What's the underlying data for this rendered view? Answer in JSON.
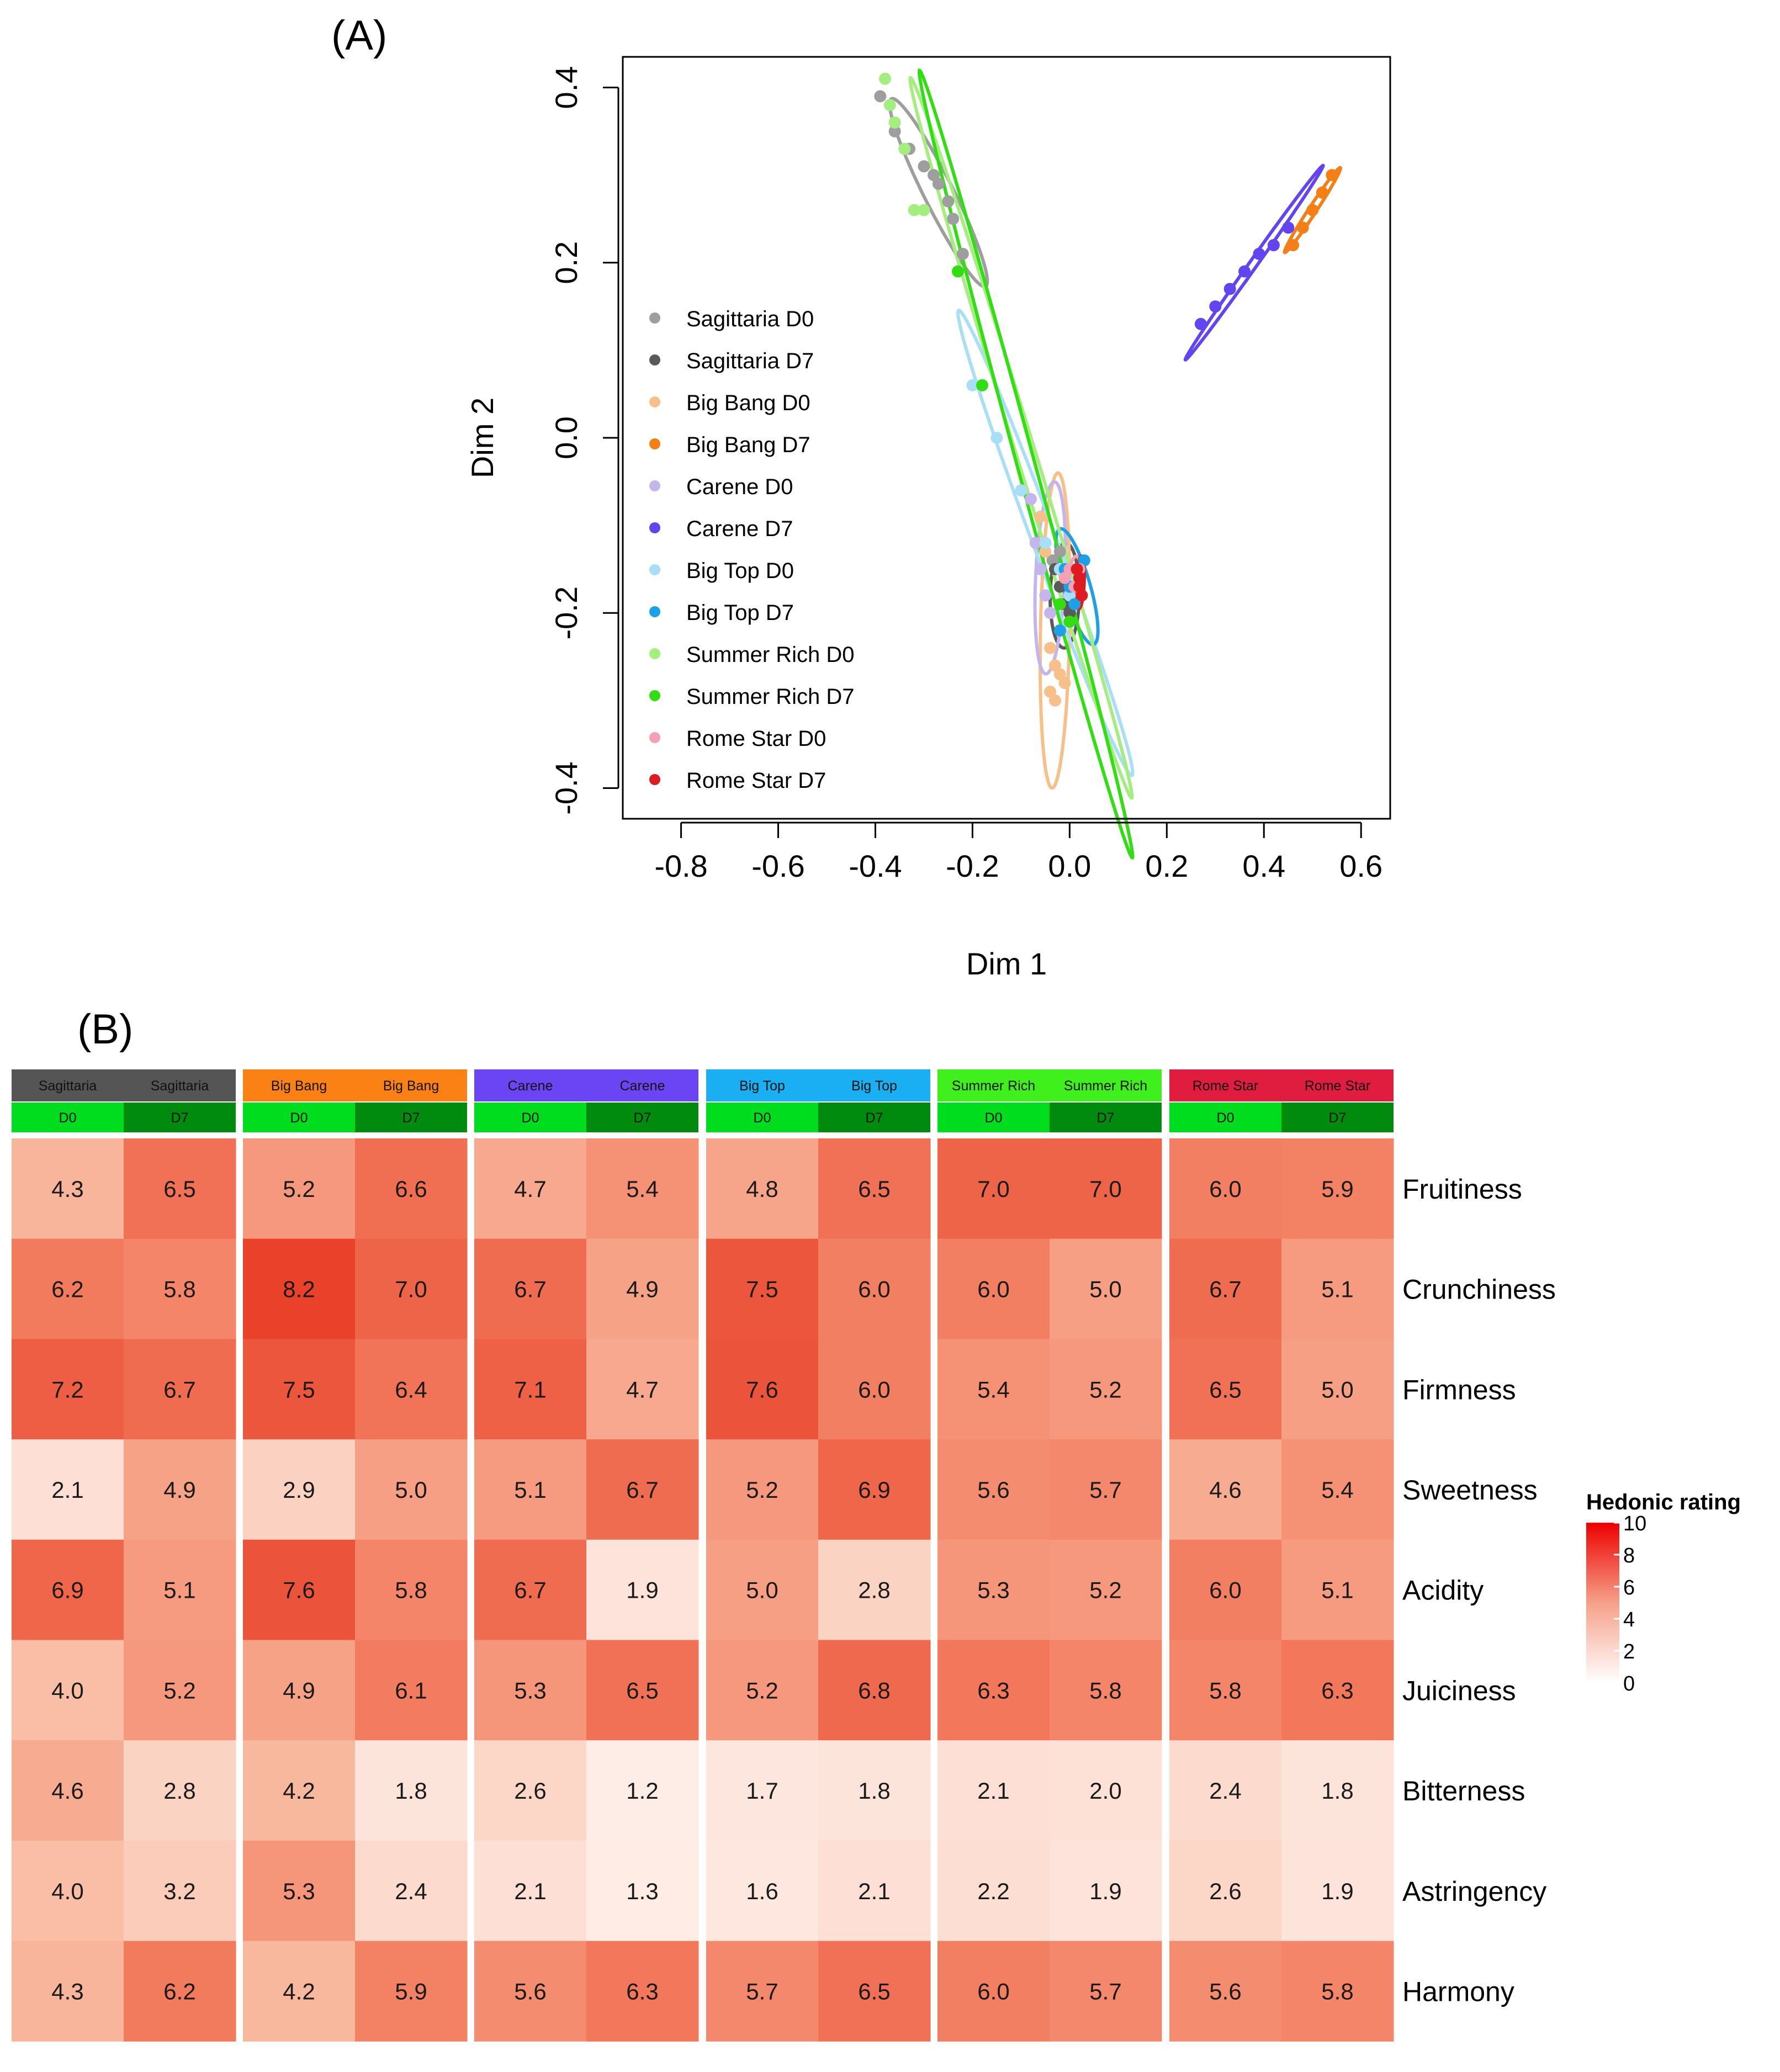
{
  "panel_a": {
    "label": "(A)",
    "chart_data": {
      "type": "scatter",
      "xlabel": "Dim 1",
      "ylabel": "Dim 2",
      "xlim": [
        -0.92,
        0.66
      ],
      "ylim": [
        -0.435,
        0.435
      ],
      "xticks": [
        -0.8,
        -0.6,
        -0.4,
        -0.2,
        0.0,
        0.2,
        0.4,
        0.6
      ],
      "yticks": [
        -0.4,
        -0.2,
        0.0,
        0.2,
        0.4
      ],
      "xtick_labels": [
        "-0.8",
        "-0.6",
        "-0.4",
        "-0.2",
        "0.0",
        "0.2",
        "0.4",
        "0.6"
      ],
      "ytick_labels": [
        "-0.4",
        "-0.2",
        "0.0",
        "0.2",
        "0.4"
      ],
      "legend_position": "left",
      "series": [
        {
          "name": "Sagittaria D0",
          "color": "#9e9e9e",
          "points": [
            [
              -0.39,
              0.39
            ],
            [
              -0.36,
              0.35
            ],
            [
              -0.33,
              0.33
            ],
            [
              -0.3,
              0.31
            ],
            [
              -0.28,
              0.3
            ],
            [
              -0.27,
              0.29
            ],
            [
              -0.25,
              0.27
            ],
            [
              -0.24,
              0.25
            ],
            [
              -0.22,
              0.21
            ],
            [
              -0.035,
              -0.14
            ],
            [
              -0.02,
              -0.13
            ]
          ],
          "ellipse": {
            "cx": -0.27,
            "cy": 0.28,
            "a": 0.145,
            "b": 0.025,
            "angle": -47
          }
        },
        {
          "name": "Sagittaria D7",
          "color": "#5a5a5a",
          "points": [
            [
              -0.03,
              -0.15
            ],
            [
              -0.02,
              -0.17
            ],
            [
              -0.01,
              -0.19
            ],
            [
              0.0,
              -0.2
            ],
            [
              -0.02,
              -0.22
            ]
          ],
          "ellipse": {
            "cx": -0.01,
            "cy": -0.18,
            "a": 0.06,
            "b": 0.03,
            "angle": 88
          }
        },
        {
          "name": "Big Bang D0",
          "color": "#f7c08a",
          "points": [
            [
              -0.06,
              -0.09
            ],
            [
              -0.05,
              -0.13
            ],
            [
              -0.04,
              -0.24
            ],
            [
              -0.03,
              -0.26
            ],
            [
              -0.02,
              -0.27
            ],
            [
              -0.04,
              -0.29
            ],
            [
              -0.03,
              -0.3
            ],
            [
              -0.01,
              -0.28
            ]
          ],
          "ellipse": {
            "cx": -0.03,
            "cy": -0.22,
            "a": 0.18,
            "b": 0.03,
            "angle": 88
          }
        },
        {
          "name": "Big Bang D7",
          "color": "#f57f17",
          "points": [
            [
              0.46,
              0.22
            ],
            [
              0.48,
              0.24
            ],
            [
              0.5,
              0.26
            ],
            [
              0.52,
              0.28
            ],
            [
              0.54,
              0.3
            ]
          ],
          "ellipse": {
            "cx": 0.5,
            "cy": 0.26,
            "a": 0.075,
            "b": 0.006,
            "angle": 40
          }
        },
        {
          "name": "Carene D0",
          "color": "#c4b5ec",
          "points": [
            [
              -0.08,
              -0.07
            ],
            [
              -0.07,
              -0.12
            ],
            [
              -0.06,
              -0.15
            ],
            [
              -0.05,
              -0.18
            ],
            [
              -0.04,
              -0.2
            ]
          ],
          "ellipse": {
            "cx": -0.04,
            "cy": -0.16,
            "a": 0.11,
            "b": 0.03,
            "angle": 85
          }
        },
        {
          "name": "Carene D7",
          "color": "#6244f0",
          "points": [
            [
              0.27,
              0.13
            ],
            [
              0.3,
              0.15
            ],
            [
              0.33,
              0.17
            ],
            [
              0.36,
              0.19
            ],
            [
              0.39,
              0.21
            ],
            [
              0.42,
              0.22
            ],
            [
              0.45,
              0.24
            ]
          ],
          "ellipse": {
            "cx": 0.38,
            "cy": 0.2,
            "a": 0.18,
            "b": 0.006,
            "angle": 38
          }
        },
        {
          "name": "Big Top D0",
          "color": "#a8dff7",
          "points": [
            [
              -0.2,
              0.06
            ],
            [
              -0.15,
              0.0
            ],
            [
              -0.1,
              -0.06
            ],
            [
              -0.05,
              -0.12
            ],
            [
              -0.02,
              -0.15
            ],
            [
              0.0,
              -0.18
            ]
          ],
          "ellipse": {
            "cx": -0.05,
            "cy": -0.12,
            "a": 0.32,
            "b": 0.022,
            "angle": -56
          }
        },
        {
          "name": "Big Top D7",
          "color": "#1ea0e8",
          "points": [
            [
              -0.01,
              -0.15
            ],
            [
              0.0,
              -0.17
            ],
            [
              0.02,
              -0.16
            ],
            [
              0.03,
              -0.14
            ],
            [
              0.01,
              -0.19
            ],
            [
              -0.02,
              -0.22
            ]
          ],
          "ellipse": {
            "cx": 0.015,
            "cy": -0.17,
            "a": 0.075,
            "b": 0.025,
            "angle": -60
          }
        },
        {
          "name": "Summer Rich D0",
          "color": "#a3ee7e",
          "points": [
            [
              -0.38,
              0.41
            ],
            [
              -0.37,
              0.38
            ],
            [
              -0.36,
              0.36
            ],
            [
              -0.34,
              0.33
            ],
            [
              -0.32,
              0.26
            ],
            [
              -0.3,
              0.26
            ]
          ],
          "ellipse": {
            "cx": -0.1,
            "cy": 0.0,
            "a": 0.47,
            "b": 0.018,
            "angle": -61
          }
        },
        {
          "name": "Summer Rich D7",
          "color": "#33dd14",
          "points": [
            [
              -0.23,
              0.19
            ],
            [
              -0.18,
              0.06
            ],
            [
              -0.02,
              -0.19
            ],
            [
              0.0,
              -0.21
            ]
          ],
          "ellipse": {
            "cx": -0.09,
            "cy": -0.03,
            "a": 0.5,
            "b": 0.017,
            "angle": -64
          }
        },
        {
          "name": "Rome Star D0",
          "color": "#f5a0b5",
          "points": [
            [
              -0.01,
              -0.16
            ],
            [
              0.0,
              -0.15
            ],
            [
              0.01,
              -0.17
            ],
            [
              0.02,
              -0.15
            ]
          ],
          "ellipse": {
            "cx": 0.01,
            "cy": -0.16,
            "a": 0.025,
            "b": 0.012,
            "angle": 80
          }
        },
        {
          "name": "Rome Star D7",
          "color": "#dd1b22",
          "points": [
            [
              0.015,
              -0.15
            ],
            [
              0.02,
              -0.17
            ],
            [
              0.025,
              -0.18
            ],
            [
              0.02,
              -0.16
            ]
          ],
          "ellipse": {
            "cx": 0.022,
            "cy": -0.165,
            "a": 0.03,
            "b": 0.008,
            "angle": 85
          }
        }
      ]
    }
  },
  "panel_b": {
    "label": "(B)",
    "chart_data": {
      "type": "heatmap",
      "legend_title": "Hedonic rating",
      "color_range": [
        0,
        10
      ],
      "colorbar_ticks": [
        "10",
        "8",
        "6",
        "4",
        "2",
        "0"
      ],
      "columns": [
        {
          "variety": "Sagittaria",
          "day": "D0",
          "variety_color": "#555555",
          "day_color": "#00dd1f"
        },
        {
          "variety": "Sagittaria",
          "day": "D7",
          "variety_color": "#555555",
          "day_color": "#008b0e"
        },
        {
          "variety": "Big Bang",
          "day": "D0",
          "variety_color": "#fb8115",
          "day_color": "#00dd1f"
        },
        {
          "variety": "Big Bang",
          "day": "D7",
          "variety_color": "#fb8115",
          "day_color": "#008b0e"
        },
        {
          "variety": "Carene",
          "day": "D0",
          "variety_color": "#6b45f4",
          "day_color": "#00dd1f"
        },
        {
          "variety": "Carene",
          "day": "D7",
          "variety_color": "#6b45f4",
          "day_color": "#008b0e"
        },
        {
          "variety": "Big Top",
          "day": "D0",
          "variety_color": "#19aff2",
          "day_color": "#00dd1f"
        },
        {
          "variety": "Big Top",
          "day": "D7",
          "variety_color": "#19aff2",
          "day_color": "#008b0e"
        },
        {
          "variety": "Summer Rich",
          "day": "D0",
          "variety_color": "#40f01c",
          "day_color": "#00dd1f"
        },
        {
          "variety": "Summer Rich",
          "day": "D7",
          "variety_color": "#40f01c",
          "day_color": "#008b0e"
        },
        {
          "variety": "Rome Star",
          "day": "D0",
          "variety_color": "#e01c3f",
          "day_color": "#00dd1f"
        },
        {
          "variety": "Rome Star",
          "day": "D7",
          "variety_color": "#e01c3f",
          "day_color": "#008b0e"
        }
      ],
      "rows": [
        "Fruitiness",
        "Crunchiness",
        "Firmness",
        "Sweetness",
        "Acidity",
        "Juiciness",
        "Bitterness",
        "Astringency",
        "Harmony"
      ],
      "values": [
        [
          "4.3",
          "6.5",
          "5.2",
          "6.6",
          "4.7",
          "5.4",
          "4.8",
          "6.5",
          "7.0",
          "7.0",
          "6.0",
          "5.9"
        ],
        [
          "6.2",
          "5.8",
          "8.2",
          "7.0",
          "6.7",
          "4.9",
          "7.5",
          "6.0",
          "6.0",
          "5.0",
          "6.7",
          "5.1"
        ],
        [
          "7.2",
          "6.7",
          "7.5",
          "6.4",
          "7.1",
          "4.7",
          "7.6",
          "6.0",
          "5.4",
          "5.2",
          "6.5",
          "5.0"
        ],
        [
          "2.1",
          "4.9",
          "2.9",
          "5.0",
          "5.1",
          "6.7",
          "5.2",
          "6.9",
          "5.6",
          "5.7",
          "4.6",
          "5.4"
        ],
        [
          "6.9",
          "5.1",
          "7.6",
          "5.8",
          "6.7",
          "1.9",
          "5.0",
          "2.8",
          "5.3",
          "5.2",
          "6.0",
          "5.1"
        ],
        [
          "4.0",
          "5.2",
          "4.9",
          "6.1",
          "5.3",
          "6.5",
          "5.2",
          "6.8",
          "6.3",
          "5.8",
          "5.8",
          "6.3"
        ],
        [
          "4.6",
          "2.8",
          "4.2",
          "1.8",
          "2.6",
          "1.2",
          "1.7",
          "1.8",
          "2.1",
          "2.0",
          "2.4",
          "1.8"
        ],
        [
          "4.0",
          "3.2",
          "5.3",
          "2.4",
          "2.1",
          "1.3",
          "1.6",
          "2.1",
          "2.2",
          "1.9",
          "2.6",
          "1.9"
        ],
        [
          "4.3",
          "6.2",
          "4.2",
          "5.9",
          "5.6",
          "6.3",
          "5.7",
          "6.5",
          "6.0",
          "5.7",
          "5.6",
          "5.8"
        ]
      ]
    }
  }
}
